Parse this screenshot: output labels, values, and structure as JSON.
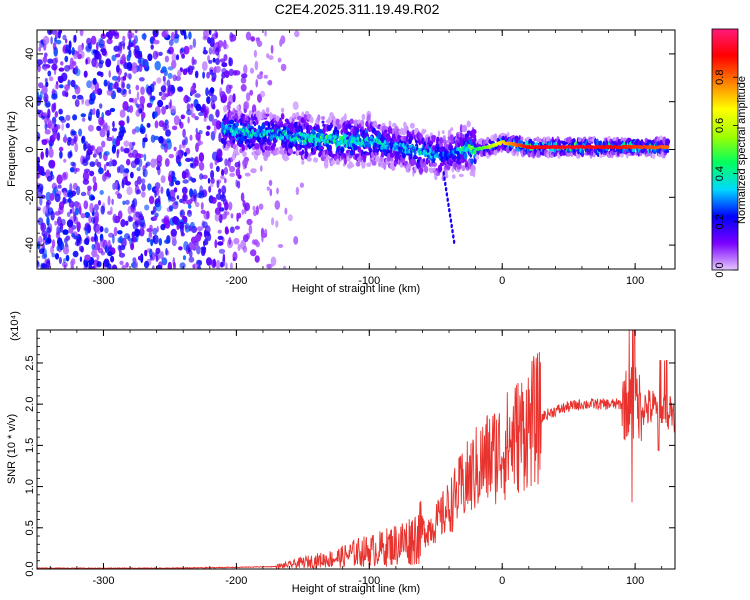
{
  "title": "C2E4.2025.311.19.49.R02",
  "chart_data": [
    {
      "type": "heatmap",
      "xlabel": "Height of straight line (km)",
      "ylabel": "Frequency (Hz)",
      "xlim": [
        -350,
        130
      ],
      "ylim": [
        -50,
        50
      ],
      "x_ticks": [
        -300,
        -200,
        -100,
        0,
        100
      ],
      "y_ticks": [
        -40,
        -20,
        0,
        20,
        40
      ],
      "colorbar": {
        "label": "Normalized spectral amplitude",
        "range": [
          0,
          1
        ],
        "ticks": [
          "0.0",
          "0.2",
          "0.4",
          "0.6",
          "0.8"
        ],
        "colors": [
          "#e6c8ff",
          "#7a00ff",
          "#0000ff",
          "#00d8ff",
          "#00ff60",
          "#a0ff00",
          "#ffff00",
          "#ff8000",
          "#ff0000",
          "#ff1a7a"
        ]
      },
      "ridge": {
        "x": [
          -210,
          -190,
          -170,
          -150,
          -130,
          -110,
          -100,
          -90,
          -80,
          -70,
          -60,
          -50,
          -45,
          -40,
          -35,
          -30,
          -20,
          -10,
          0,
          20,
          50,
          80,
          100,
          125
        ],
        "y": [
          8,
          7,
          6,
          5,
          4,
          3,
          4,
          2,
          1,
          0,
          -1,
          -2,
          -3,
          -2,
          -1,
          0,
          0,
          1,
          3,
          1,
          1,
          1,
          1,
          1
        ],
        "peak_amplitude": [
          0.35,
          0.38,
          0.35,
          0.4,
          0.42,
          0.4,
          0.38,
          0.35,
          0.3,
          0.33,
          0.35,
          0.3,
          0.28,
          0.25,
          0.3,
          0.4,
          0.45,
          0.55,
          0.7,
          0.9,
          0.92,
          0.9,
          0.85,
          0.8
        ]
      },
      "noise_region_x": [
        -350,
        -170
      ]
    },
    {
      "type": "line",
      "xlabel": "Height of straight line (km)",
      "ylabel": "SNR (10 * v/v)",
      "scale_label": "(x10⁴)",
      "xlim": [
        -350,
        130
      ],
      "ylim": [
        0,
        2.9
      ],
      "x_ticks": [
        -300,
        -200,
        -100,
        0,
        100
      ],
      "y_ticks": [
        "0.0",
        "0.5",
        "1.0",
        "1.5",
        "2.0",
        "2.5"
      ],
      "series": [
        {
          "color": "#e8322d",
          "x": [
            -350,
            -250,
            -200,
            -170,
            -160,
            -150,
            -140,
            -130,
            -120,
            -110,
            -100,
            -90,
            -80,
            -70,
            -60,
            -50,
            -40,
            -30,
            -20,
            -10,
            0,
            10,
            20,
            30,
            40,
            50,
            60,
            70,
            80,
            90,
            95,
            100,
            105,
            110,
            115,
            120,
            125,
            130
          ],
          "y": [
            0.01,
            0.01,
            0.02,
            0.03,
            0.05,
            0.08,
            0.1,
            0.12,
            0.15,
            0.2,
            0.22,
            0.25,
            0.3,
            0.35,
            0.45,
            0.55,
            0.75,
            1.0,
            1.2,
            1.35,
            1.45,
            1.6,
            1.75,
            1.85,
            1.92,
            1.97,
            2.0,
            2.0,
            2.0,
            2.0,
            2.0,
            2.02,
            1.98,
            1.95,
            1.95,
            1.93,
            1.93,
            1.92
          ]
        }
      ]
    }
  ]
}
